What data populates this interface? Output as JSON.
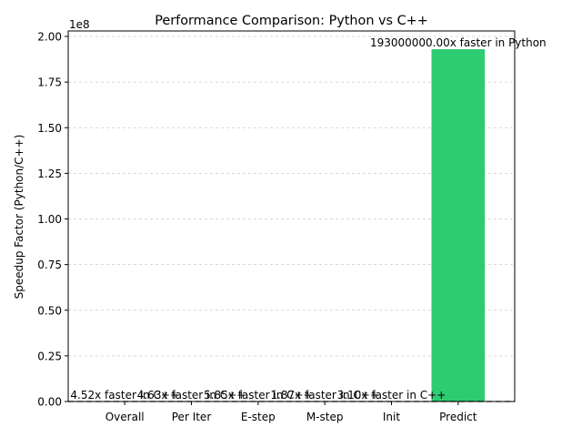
{
  "chart_data": {
    "type": "bar",
    "title": "Performance Comparison: Python vs C++",
    "xlabel": "",
    "ylabel": "Speedup Factor (Python/C++)",
    "offset_text": "1e8",
    "ylim": [
      0,
      203000000
    ],
    "yticks": [
      0,
      25000000,
      50000000,
      75000000,
      100000000,
      125000000,
      150000000,
      175000000,
      200000000
    ],
    "ytick_labels": [
      "0.00",
      "0.25",
      "0.50",
      "0.75",
      "1.00",
      "1.25",
      "1.50",
      "1.75",
      "2.00"
    ],
    "grid": "y-dashed",
    "reference_line": 1,
    "categories": [
      "Overall",
      "Per Iter",
      "E-step",
      "M-step",
      "Init",
      "Predict"
    ],
    "values": [
      4.52,
      4.63,
      5.85,
      1.87,
      3.1,
      193000000
    ],
    "labels": [
      "4.52x faster in C++",
      "4.63x faster in C++",
      "5.85x faster in C++",
      "1.87x faster in C++",
      "3.10x faster in C++",
      "193000000.00x faster in Python"
    ],
    "colors": {
      "faster_in_cpp": "#e74c3c",
      "faster_in_python": "#2ecc71",
      "bar_colors": [
        "#e74c3c",
        "#e74c3c",
        "#e74c3c",
        "#e74c3c",
        "#e74c3c",
        "#2ecc71"
      ],
      "grid": "#cccccc",
      "axes": "#000000"
    }
  }
}
